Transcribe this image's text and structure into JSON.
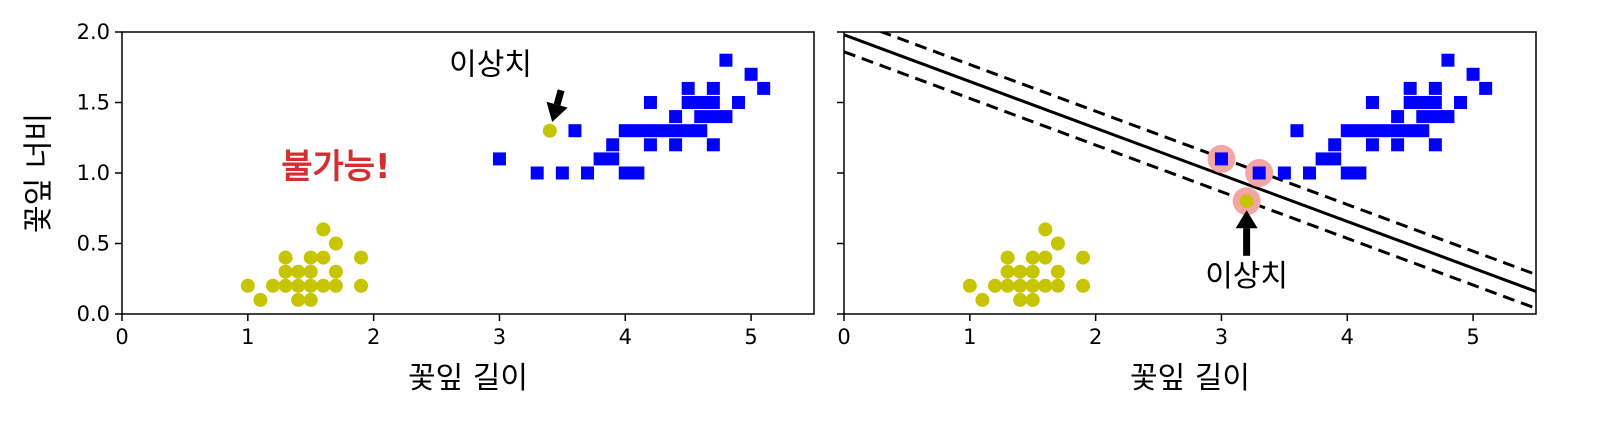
{
  "chart_data": [
    {
      "type": "scatter",
      "title": "",
      "xlabel": "꽃잎 길이",
      "ylabel": "꽃잎 너비",
      "xlim": [
        0,
        5.5
      ],
      "ylim": [
        0,
        2.0
      ],
      "xticks": [
        0,
        1,
        2,
        3,
        4,
        5
      ],
      "yticks": [
        "0.0",
        "0.5",
        "1.0",
        "1.5",
        "2.0"
      ],
      "grid": false,
      "series": [
        {
          "marker": "circle",
          "color": "#c7c400",
          "points": [
            [
              1.0,
              0.2
            ],
            [
              1.1,
              0.1
            ],
            [
              1.2,
              0.2
            ],
            [
              1.3,
              0.2
            ],
            [
              1.3,
              0.3
            ],
            [
              1.3,
              0.4
            ],
            [
              1.4,
              0.1
            ],
            [
              1.4,
              0.2
            ],
            [
              1.4,
              0.3
            ],
            [
              1.5,
              0.1
            ],
            [
              1.5,
              0.2
            ],
            [
              1.5,
              0.3
            ],
            [
              1.5,
              0.4
            ],
            [
              1.6,
              0.2
            ],
            [
              1.6,
              0.4
            ],
            [
              1.6,
              0.6
            ],
            [
              1.7,
              0.2
            ],
            [
              1.7,
              0.3
            ],
            [
              1.7,
              0.5
            ],
            [
              1.9,
              0.2
            ],
            [
              1.9,
              0.4
            ],
            [
              3.4,
              1.3
            ]
          ]
        },
        {
          "marker": "square",
          "color": "#0000ff",
          "points": [
            [
              3.0,
              1.1
            ],
            [
              3.3,
              1.0
            ],
            [
              3.5,
              1.0
            ],
            [
              3.6,
              1.3
            ],
            [
              3.7,
              1.0
            ],
            [
              3.8,
              1.1
            ],
            [
              3.9,
              1.1
            ],
            [
              3.9,
              1.2
            ],
            [
              4.0,
              1.0
            ],
            [
              4.0,
              1.3
            ],
            [
              4.1,
              1.0
            ],
            [
              4.1,
              1.3
            ],
            [
              4.2,
              1.2
            ],
            [
              4.2,
              1.3
            ],
            [
              4.2,
              1.5
            ],
            [
              4.3,
              1.3
            ],
            [
              4.4,
              1.2
            ],
            [
              4.4,
              1.3
            ],
            [
              4.4,
              1.4
            ],
            [
              4.5,
              1.3
            ],
            [
              4.5,
              1.5
            ],
            [
              4.5,
              1.6
            ],
            [
              4.6,
              1.3
            ],
            [
              4.6,
              1.4
            ],
            [
              4.6,
              1.5
            ],
            [
              4.7,
              1.2
            ],
            [
              4.7,
              1.4
            ],
            [
              4.7,
              1.5
            ],
            [
              4.7,
              1.6
            ],
            [
              4.8,
              1.4
            ],
            [
              4.8,
              1.8
            ],
            [
              4.9,
              1.5
            ],
            [
              5.0,
              1.7
            ],
            [
              5.1,
              1.6
            ]
          ]
        }
      ],
      "annotations": [
        {
          "text": "이상치",
          "point": [
            3.4,
            1.3
          ],
          "text_at": [
            2.6,
            1.7
          ]
        },
        {
          "text": "불가능!",
          "at": [
            1.7,
            1.05
          ],
          "color": "#d32f2f"
        }
      ]
    },
    {
      "type": "scatter",
      "title": "",
      "xlabel": "꽃잎 길이",
      "ylabel": "",
      "xlim": [
        0,
        5.5
      ],
      "ylim": [
        0,
        2.0
      ],
      "xticks": [
        0,
        1,
        2,
        3,
        4,
        5
      ],
      "grid": false,
      "series": [
        {
          "marker": "circle",
          "color": "#c7c400",
          "points": [
            [
              1.0,
              0.2
            ],
            [
              1.1,
              0.1
            ],
            [
              1.2,
              0.2
            ],
            [
              1.3,
              0.2
            ],
            [
              1.3,
              0.3
            ],
            [
              1.3,
              0.4
            ],
            [
              1.4,
              0.1
            ],
            [
              1.4,
              0.2
            ],
            [
              1.4,
              0.3
            ],
            [
              1.5,
              0.1
            ],
            [
              1.5,
              0.2
            ],
            [
              1.5,
              0.3
            ],
            [
              1.5,
              0.4
            ],
            [
              1.6,
              0.2
            ],
            [
              1.6,
              0.4
            ],
            [
              1.6,
              0.6
            ],
            [
              1.7,
              0.2
            ],
            [
              1.7,
              0.3
            ],
            [
              1.7,
              0.5
            ],
            [
              1.9,
              0.2
            ],
            [
              1.9,
              0.4
            ],
            [
              3.2,
              0.8
            ]
          ]
        },
        {
          "marker": "square",
          "color": "#0000ff",
          "points": [
            [
              3.0,
              1.1
            ],
            [
              3.3,
              1.0
            ],
            [
              3.5,
              1.0
            ],
            [
              3.6,
              1.3
            ],
            [
              3.7,
              1.0
            ],
            [
              3.8,
              1.1
            ],
            [
              3.9,
              1.1
            ],
            [
              3.9,
              1.2
            ],
            [
              4.0,
              1.0
            ],
            [
              4.0,
              1.3
            ],
            [
              4.1,
              1.0
            ],
            [
              4.1,
              1.3
            ],
            [
              4.2,
              1.2
            ],
            [
              4.2,
              1.3
            ],
            [
              4.2,
              1.5
            ],
            [
              4.3,
              1.3
            ],
            [
              4.4,
              1.2
            ],
            [
              4.4,
              1.3
            ],
            [
              4.4,
              1.4
            ],
            [
              4.5,
              1.3
            ],
            [
              4.5,
              1.5
            ],
            [
              4.5,
              1.6
            ],
            [
              4.6,
              1.3
            ],
            [
              4.6,
              1.4
            ],
            [
              4.6,
              1.5
            ],
            [
              4.7,
              1.2
            ],
            [
              4.7,
              1.4
            ],
            [
              4.7,
              1.5
            ],
            [
              4.7,
              1.6
            ],
            [
              4.8,
              1.4
            ],
            [
              4.8,
              1.8
            ],
            [
              4.9,
              1.5
            ],
            [
              5.0,
              1.7
            ],
            [
              5.1,
              1.6
            ]
          ]
        }
      ],
      "support_vectors": {
        "color": "#f4a6a6",
        "points": [
          [
            3.0,
            1.1
          ],
          [
            3.3,
            1.0
          ],
          [
            3.2,
            0.8
          ]
        ]
      },
      "decision_boundary": {
        "color": "#000000",
        "style": "solid",
        "from": [
          0,
          1.98
        ],
        "to": [
          5.5,
          0.16
        ]
      },
      "margins": [
        {
          "color": "#000000",
          "style": "dashed",
          "from": [
            0,
            2.1
          ],
          "to": [
            5.5,
            0.28
          ]
        },
        {
          "color": "#000000",
          "style": "dashed",
          "from": [
            0,
            1.86
          ],
          "to": [
            5.5,
            0.04
          ]
        }
      ],
      "annotations": [
        {
          "text": "이상치",
          "point": [
            3.2,
            0.8
          ],
          "text_at": [
            3.2,
            0.2
          ]
        }
      ]
    }
  ]
}
